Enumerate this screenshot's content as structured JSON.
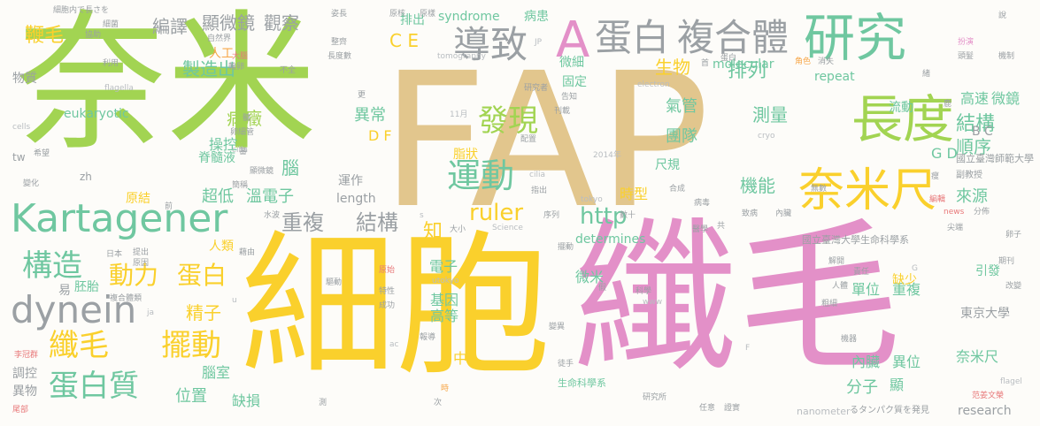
{
  "palette": {
    "green": "#a2d452",
    "tan": "#e2c68d",
    "pink": "#e390c8",
    "yellow": "#fad02c",
    "teal": "#6fc7a0",
    "gray": "#9ba0a4",
    "orange": "#f7a74a",
    "blue": "#8aa0cc",
    "red": "#e8797a",
    "lightgray": "#b9bdc1"
  },
  "words": [
    {
      "text": "奈米",
      "color": "green",
      "size": 170
    },
    {
      "text": "FAP",
      "color": "tan",
      "size": 210
    },
    {
      "text": "細胞",
      "color": "yellow",
      "size": 175
    },
    {
      "text": "纖毛",
      "color": "pink",
      "size": 175
    },
    {
      "text": "A",
      "color": "pink",
      "size": 56
    },
    {
      "text": "蛋白",
      "color": "gray",
      "size": 42
    },
    {
      "text": "複合體",
      "color": "gray",
      "size": 42
    },
    {
      "text": "研究",
      "color": "teal",
      "size": 58
    },
    {
      "text": "導致",
      "color": "gray",
      "size": 42
    },
    {
      "text": "長度",
      "color": "green",
      "size": 58
    },
    {
      "text": "奈米尺",
      "color": "yellow",
      "size": 52
    },
    {
      "text": "Kartagener",
      "color": "teal",
      "size": 44
    },
    {
      "text": "dynein",
      "color": "gray",
      "size": 42
    },
    {
      "text": "運動",
      "color": "teal",
      "size": 38
    },
    {
      "text": "發現",
      "color": "green",
      "size": 34
    },
    {
      "text": "構造",
      "color": "teal",
      "size": 34
    },
    {
      "text": "纖毛",
      "color": "yellow",
      "size": 34
    },
    {
      "text": "擺動",
      "color": "yellow",
      "size": 34
    },
    {
      "text": "蛋白質",
      "color": "teal",
      "size": 34
    },
    {
      "text": "動力",
      "color": "yellow",
      "size": 28
    },
    {
      "text": "蛋白",
      "color": "yellow",
      "size": 28
    },
    {
      "text": "重複",
      "color": "gray",
      "size": 24
    },
    {
      "text": "結構",
      "color": "gray",
      "size": 24
    },
    {
      "text": "ruler",
      "color": "yellow",
      "size": 26
    },
    {
      "text": "http",
      "color": "teal",
      "size": 26
    },
    {
      "text": "排列",
      "color": "teal",
      "size": 22
    },
    {
      "text": "結構",
      "color": "teal",
      "size": 22
    },
    {
      "text": "順序",
      "color": "teal",
      "size": 20
    },
    {
      "text": "鞭毛",
      "color": "yellow",
      "size": 22
    },
    {
      "text": "編譯",
      "color": "gray",
      "size": 20
    },
    {
      "text": "顯微鏡",
      "color": "gray",
      "size": 20
    },
    {
      "text": "觀察",
      "color": "gray",
      "size": 20
    },
    {
      "text": "製造出",
      "color": "teal",
      "size": 20
    },
    {
      "text": "C E",
      "color": "yellow",
      "size": 20
    },
    {
      "text": "生物",
      "color": "yellow",
      "size": 20
    },
    {
      "text": "病癥",
      "color": "green",
      "size": 20
    },
    {
      "text": "異常",
      "color": "teal",
      "size": 18
    },
    {
      "text": "D F",
      "color": "yellow",
      "size": 16
    },
    {
      "text": "測量",
      "color": "teal",
      "size": 20
    },
    {
      "text": "團隊",
      "color": "teal",
      "size": 18
    },
    {
      "text": "氣管",
      "color": "teal",
      "size": 18
    },
    {
      "text": "機能",
      "color": "teal",
      "size": 20
    },
    {
      "text": "來源",
      "color": "teal",
      "size": 18
    },
    {
      "text": "G D",
      "color": "teal",
      "size": 16
    },
    {
      "text": "B C",
      "color": "gray",
      "size": 14
    },
    {
      "text": "高速",
      "color": "teal",
      "size": 16
    },
    {
      "text": "微鏡",
      "color": "teal",
      "size": 16
    },
    {
      "text": "流動",
      "color": "teal",
      "size": 14
    },
    {
      "text": "molecular",
      "color": "teal",
      "size": 14
    },
    {
      "text": "repeat",
      "color": "teal",
      "size": 14
    },
    {
      "text": "eukaryotic",
      "color": "teal",
      "size": 14
    },
    {
      "text": "syndrome",
      "color": "teal",
      "size": 14
    },
    {
      "text": "病患",
      "color": "teal",
      "size": 14
    },
    {
      "text": "固定",
      "color": "teal",
      "size": 14
    },
    {
      "text": "微細",
      "color": "teal",
      "size": 14
    },
    {
      "text": "超低",
      "color": "teal",
      "size": 18
    },
    {
      "text": "溫電子",
      "color": "teal",
      "size": 18
    },
    {
      "text": "尺規",
      "color": "teal",
      "size": 14
    },
    {
      "text": "時型",
      "color": "yellow",
      "size": 16
    },
    {
      "text": "脂狀",
      "color": "yellow",
      "size": 14
    },
    {
      "text": "操控",
      "color": "teal",
      "size": 16
    },
    {
      "text": "脊髓液",
      "color": "teal",
      "size": 14
    },
    {
      "text": "腦",
      "color": "teal",
      "size": 20
    },
    {
      "text": "人類",
      "color": "yellow",
      "size": 14
    },
    {
      "text": "原結",
      "color": "yellow",
      "size": 14
    },
    {
      "text": "運作",
      "color": "gray",
      "size": 14
    },
    {
      "text": "length",
      "color": "gray",
      "size": 14
    },
    {
      "text": "知",
      "color": "yellow",
      "size": 22
    },
    {
      "text": "精子",
      "color": "yellow",
      "size": 20
    },
    {
      "text": "電子",
      "color": "teal",
      "size": 16
    },
    {
      "text": "基因",
      "color": "teal",
      "size": 16
    },
    {
      "text": "高等",
      "color": "teal",
      "size": 16
    },
    {
      "text": "中",
      "color": "yellow",
      "size": 16
    },
    {
      "text": "腦室",
      "color": "teal",
      "size": 16
    },
    {
      "text": "位置",
      "color": "teal",
      "size": 18
    },
    {
      "text": "缺損",
      "color": "teal",
      "size": 16
    },
    {
      "text": "微米",
      "color": "teal",
      "size": 16
    },
    {
      "text": "單位",
      "color": "teal",
      "size": 16
    },
    {
      "text": "重複",
      "color": "teal",
      "size": 16
    },
    {
      "text": "東京大學",
      "color": "gray",
      "size": 14
    },
    {
      "text": "內臟",
      "color": "teal",
      "size": 16
    },
    {
      "text": "異位",
      "color": "teal",
      "size": 16
    },
    {
      "text": "奈米尺",
      "color": "teal",
      "size": 16
    },
    {
      "text": "分子",
      "color": "teal",
      "size": 18
    },
    {
      "text": "顯",
      "color": "teal",
      "size": 16
    },
    {
      "text": "research",
      "color": "gray",
      "size": 14
    },
    {
      "text": "引發",
      "color": "teal",
      "size": 14
    },
    {
      "text": "缺少",
      "color": "yellow",
      "size": 14
    },
    {
      "text": "determines",
      "color": "teal",
      "size": 14
    },
    {
      "text": "國立臺灣大學生命科學系",
      "color": "gray",
      "size": 11
    },
    {
      "text": "國立臺灣師範大學",
      "color": "gray",
      "size": 11
    },
    {
      "text": "生命科學系",
      "color": "teal",
      "size": 11
    },
    {
      "text": "物質",
      "color": "gray",
      "size": 14
    },
    {
      "text": "調控",
      "color": "gray",
      "size": 14
    },
    {
      "text": "異物",
      "color": "gray",
      "size": 14
    },
    {
      "text": "胚胎",
      "color": "teal",
      "size": 14
    },
    {
      "text": "細胞内で長さを",
      "color": "gray",
      "size": 9
    },
    {
      "text": "るタンパク質を発見",
      "color": "gray",
      "size": 10
    },
    {
      "text": "nanometer",
      "color": "lightgray",
      "size": 11
    },
    {
      "text": "tomography",
      "color": "lightgray",
      "size": 9
    },
    {
      "text": "flagella",
      "color": "lightgray",
      "size": 9
    },
    {
      "text": "electron",
      "color": "lightgray",
      "size": 9
    },
    {
      "text": "cells",
      "color": "lightgray",
      "size": 9
    },
    {
      "text": "cryo",
      "color": "lightgray",
      "size": 9
    },
    {
      "text": "cilla",
      "color": "lightgray",
      "size": 9
    },
    {
      "text": "zh",
      "color": "gray",
      "size": 12
    },
    {
      "text": "tw",
      "color": "gray",
      "size": 12
    },
    {
      "text": "Science",
      "color": "lightgray",
      "size": 9
    },
    {
      "text": "utokyo",
      "color": "lightgray",
      "size": 9
    },
    {
      "text": "tokyo",
      "color": "lightgray",
      "size": 9
    },
    {
      "text": "2014年",
      "color": "lightgray",
      "size": 9
    },
    {
      "text": "11月",
      "color": "lightgray",
      "size": 9
    },
    {
      "text": "news",
      "color": "red",
      "size": 9
    },
    {
      "text": "www",
      "color": "lightgray",
      "size": 9
    },
    {
      "text": "flagel",
      "color": "lightgray",
      "size": 9
    },
    {
      "text": "李冠群",
      "color": "red",
      "size": 9
    },
    {
      "text": "尾部",
      "color": "red",
      "size": 9
    },
    {
      "text": "范姜文榮",
      "color": "red",
      "size": 9
    },
    {
      "text": "副教授",
      "color": "gray",
      "size": 10
    },
    {
      "text": "分佈",
      "color": "gray",
      "size": 9
    },
    {
      "text": "改變",
      "color": "gray",
      "size": 9
    },
    {
      "text": "期刊",
      "color": "gray",
      "size": 9
    },
    {
      "text": "卵子",
      "color": "gray",
      "size": 9
    },
    {
      "text": "尖端",
      "color": "gray",
      "size": 9
    },
    {
      "text": "機制",
      "color": "gray",
      "size": 9
    },
    {
      "text": "扮演",
      "color": "gray",
      "size": 9
    },
    {
      "text": "角色",
      "color": "orange",
      "size": 9
    },
    {
      "text": "消失",
      "color": "gray",
      "size": 9
    },
    {
      "text": "研究所",
      "color": "gray",
      "size": 9
    },
    {
      "text": "任意",
      "color": "gray",
      "size": 9
    },
    {
      "text": "證實",
      "color": "gray",
      "size": 9
    },
    {
      "text": "機器",
      "color": "gray",
      "size": 9
    },
    {
      "text": "責任",
      "color": "gray",
      "size": 9
    },
    {
      "text": "人體",
      "color": "gray",
      "size": 9
    },
    {
      "text": "解開",
      "color": "gray",
      "size": 9
    },
    {
      "text": "粗細",
      "color": "gray",
      "size": 9
    },
    {
      "text": "病毒",
      "color": "gray",
      "size": 9
    },
    {
      "text": "醫學",
      "color": "gray",
      "size": 9
    },
    {
      "text": "科學",
      "color": "gray",
      "size": 9
    },
    {
      "text": "變異",
      "color": "gray",
      "size": 9
    },
    {
      "text": "徒手",
      "color": "gray",
      "size": 9
    },
    {
      "text": "報導",
      "color": "gray",
      "size": 9
    },
    {
      "text": "驅動",
      "color": "gray",
      "size": 9
    },
    {
      "text": "特性",
      "color": "gray",
      "size": 9
    },
    {
      "text": "成功",
      "color": "gray",
      "size": 9
    },
    {
      "text": "原始",
      "color": "red",
      "size": 9
    },
    {
      "text": "複合體類",
      "color": "gray",
      "size": 9
    },
    {
      "text": "提出",
      "color": "gray",
      "size": 9
    },
    {
      "text": "原因",
      "color": "gray",
      "size": 9
    },
    {
      "text": "日本",
      "color": "gray",
      "size": 9
    },
    {
      "text": "水波",
      "color": "gray",
      "size": 9
    },
    {
      "text": "藉由",
      "color": "gray",
      "size": 9
    },
    {
      "text": "變化",
      "color": "gray",
      "size": 9
    },
    {
      "text": "希望",
      "color": "gray",
      "size": 9
    },
    {
      "text": "利用",
      "color": "gray",
      "size": 9
    },
    {
      "text": "協助",
      "color": "gray",
      "size": 9
    },
    {
      "text": "細菌",
      "color": "gray",
      "size": 9
    },
    {
      "text": "姿長",
      "color": "gray",
      "size": 9
    },
    {
      "text": "自然界",
      "color": "gray",
      "size": 9
    },
    {
      "text": "大腦",
      "color": "red",
      "size": 9
    },
    {
      "text": "輪卵",
      "color": "gray",
      "size": 9
    },
    {
      "text": "不全",
      "color": "gray",
      "size": 9
    },
    {
      "text": "整齊",
      "color": "gray",
      "size": 9
    },
    {
      "text": "長度數",
      "color": "gray",
      "size": 9
    },
    {
      "text": "頭髮",
      "color": "gray",
      "size": 9
    },
    {
      "text": "配置",
      "color": "gray",
      "size": 9
    },
    {
      "text": "刊載",
      "color": "gray",
      "size": 9
    },
    {
      "text": "告知",
      "color": "gray",
      "size": 9
    },
    {
      "text": "研究者",
      "color": "gray",
      "size": 9
    },
    {
      "text": "卵細管",
      "color": "gray",
      "size": 9
    },
    {
      "text": "顯微鏡",
      "color": "gray",
      "size": 9
    },
    {
      "text": "簡稱",
      "color": "gray",
      "size": 9
    },
    {
      "text": "原核",
      "color": "gray",
      "size": 9
    },
    {
      "text": "指出",
      "color": "gray",
      "size": 9
    },
    {
      "text": "合成",
      "color": "gray",
      "size": 9
    },
    {
      "text": "致病",
      "color": "gray",
      "size": 9
    },
    {
      "text": "數十",
      "color": "gray",
      "size": 9
    },
    {
      "text": "序列",
      "color": "gray",
      "size": 9
    },
    {
      "text": "大小",
      "color": "gray",
      "size": 9
    },
    {
      "text": "編輯",
      "color": "red",
      "size": 9
    },
    {
      "text": "無數",
      "color": "gray",
      "size": 9
    },
    {
      "text": "說",
      "color": "gray",
      "size": 9
    },
    {
      "text": "更",
      "color": "gray",
      "size": 9
    },
    {
      "text": "前",
      "color": "gray",
      "size": 9
    },
    {
      "text": "首",
      "color": "gray",
      "size": 9
    },
    {
      "text": "共",
      "color": "gray",
      "size": 9
    },
    {
      "text": "次",
      "color": "gray",
      "size": 9
    },
    {
      "text": "時",
      "color": "orange",
      "size": 9
    },
    {
      "text": "測",
      "color": "gray",
      "size": 9
    },
    {
      "text": "蛋白",
      "color": "gray",
      "size": 9
    },
    {
      "text": "內臟",
      "color": "gray",
      "size": 9
    },
    {
      "text": "擺動",
      "color": "gray",
      "size": 9
    },
    {
      "text": "人工",
      "color": "orange",
      "size": 14
    },
    {
      "text": "JP",
      "color": "lightgray",
      "size": 9
    },
    {
      "text": "ja",
      "color": "lightgray",
      "size": 9
    },
    {
      "text": "ac",
      "color": "lightgray",
      "size": 9
    },
    {
      "text": "cilia",
      "color": "lightgray",
      "size": 9
    },
    {
      "text": "u",
      "color": "lightgray",
      "size": 9
    },
    {
      "text": "s",
      "color": "lightgray",
      "size": 9
    },
    {
      "text": "F",
      "color": "lightgray",
      "size": 9
    },
    {
      "text": "G",
      "color": "lightgray",
      "size": 9
    },
    {
      "text": "易",
      "color": "gray",
      "size": 14
    },
    {
      "text": "排出",
      "color": "teal",
      "size": 14
    },
    {
      "text": "髓",
      "color": "gray",
      "size": 9
    },
    {
      "text": "鹿",
      "color": "gray",
      "size": 9
    },
    {
      "text": "瘦",
      "color": "gray",
      "size": 9
    },
    {
      "text": "蕃",
      "color": "gray",
      "size": 9
    },
    {
      "text": "原樣",
      "color": "gray",
      "size": 9
    },
    {
      "text": "假",
      "color": "gray",
      "size": 9
    },
    {
      "text": "緒",
      "color": "gray",
      "size": 9
    }
  ]
}
